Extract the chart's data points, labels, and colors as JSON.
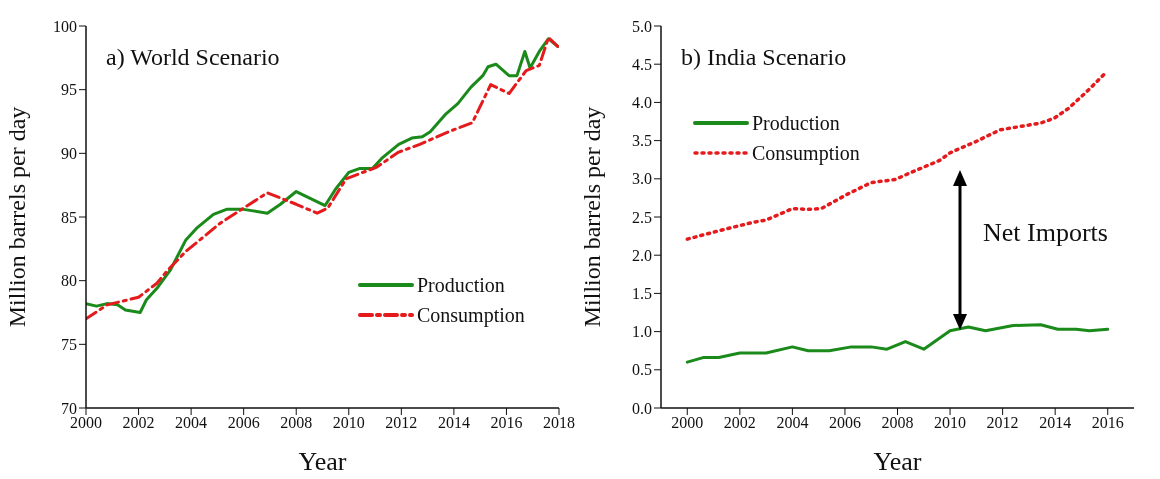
{
  "chart_data": [
    {
      "type": "line",
      "title": "a) World Scenario",
      "xlabel": "Year",
      "ylabel": "Million barrels per day",
      "xlim": [
        2000,
        2018
      ],
      "xticks": [
        2000,
        2002,
        2004,
        2006,
        2008,
        2010,
        2012,
        2014,
        2016,
        2018
      ],
      "ylim": [
        70,
        100
      ],
      "yticks": [
        70,
        75,
        80,
        85,
        90,
        95,
        100
      ],
      "grid": false,
      "legend": "bottom right",
      "series": [
        {
          "name": "Production",
          "color": "#1a8a1a",
          "line_style": "solid",
          "x": [
            2000,
            2000.4,
            2000.8,
            2001.2,
            2001.5,
            2002.06,
            2002.3,
            2002.7,
            2003.2,
            2003.8,
            2004.2,
            2004.85,
            2005.35,
            2006.0,
            2006.3,
            2006.9,
            2007.4,
            2008.0,
            2009.1,
            2009.5,
            2010.0,
            2010.4,
            2010.9,
            2011.25,
            2011.9,
            2012.4,
            2012.8,
            2013.1,
            2013.7,
            2014.15,
            2014.65,
            2015.1,
            2015.3,
            2015.6,
            2016.1,
            2016.4,
            2016.7,
            2016.9,
            2017.25,
            2017.6,
            2017.95
          ],
          "values": [
            78.2,
            78.0,
            78.2,
            78.1,
            77.7,
            77.5,
            78.5,
            79.4,
            80.8,
            83.2,
            84.1,
            85.2,
            85.6,
            85.6,
            85.5,
            85.3,
            86.0,
            87.0,
            85.9,
            87.2,
            88.5,
            88.8,
            88.8,
            89.6,
            90.7,
            91.2,
            91.3,
            91.7,
            93.1,
            93.9,
            95.2,
            96.1,
            96.8,
            97.0,
            96.1,
            96.1,
            98.0,
            96.7,
            98.0,
            99.0,
            98.4
          ]
        },
        {
          "name": "Consumption",
          "color": "#e41a1c",
          "line_style": "dashed",
          "x": [
            2000,
            2000.8,
            2002.0,
            2002.7,
            2003.1,
            2003.8,
            2005.1,
            2006.0,
            2006.9,
            2008.0,
            2008.8,
            2009.2,
            2009.9,
            2010.4,
            2011.05,
            2011.9,
            2012.7,
            2013.8,
            2014.7,
            2015.4,
            2016.1,
            2016.75,
            2017.25,
            2017.6,
            2017.95
          ],
          "values": [
            77.0,
            78.1,
            78.7,
            79.8,
            80.8,
            82.3,
            84.5,
            85.7,
            86.9,
            86.0,
            85.3,
            85.7,
            88.0,
            88.4,
            88.9,
            90.1,
            90.7,
            91.7,
            92.4,
            95.4,
            94.7,
            96.5,
            96.9,
            99.1,
            98.4
          ]
        }
      ]
    },
    {
      "type": "line",
      "title": "b) India Scenario",
      "xlabel": "Year",
      "ylabel": "Million barrels per day",
      "xlim": [
        1999,
        2017
      ],
      "xticks": [
        2000,
        2002,
        2004,
        2006,
        2008,
        2010,
        2012,
        2014,
        2016
      ],
      "ylim": [
        0,
        5
      ],
      "yticks": [
        {
          "value": 0,
          "label": "0.0"
        },
        {
          "value": 0.5,
          "label": "0.5"
        },
        {
          "value": 1,
          "label": "1.0"
        },
        {
          "value": 1.5,
          "label": "1.5"
        },
        {
          "value": 2,
          "label": "2.0"
        },
        {
          "value": 2.5,
          "label": "2.5"
        },
        {
          "value": 3,
          "label": "3.0"
        },
        {
          "value": 3.5,
          "label": "3.5"
        },
        {
          "value": 4,
          "label": "4.0"
        },
        {
          "value": 4.5,
          "label": "4.5"
        },
        {
          "value": 5,
          "label": "5.0"
        }
      ],
      "grid": false,
      "legend": "top left",
      "annotations": [
        "Net Imports"
      ],
      "series": [
        {
          "name": "Production",
          "color": "#1a8a1a",
          "line_style": "solid",
          "x": [
            2000,
            2000.6,
            2001.2,
            2002.0,
            2003.0,
            2004.0,
            2004.6,
            2005.4,
            2006.25,
            2007.0,
            2007.6,
            2008.3,
            2009.0,
            2010.0,
            2010.7,
            2011.35,
            2012.4,
            2013.45,
            2014.1,
            2014.8,
            2015.3,
            2016
          ],
          "values": [
            0.6,
            0.66,
            0.66,
            0.72,
            0.72,
            0.8,
            0.75,
            0.75,
            0.8,
            0.8,
            0.77,
            0.87,
            0.77,
            1.01,
            1.06,
            1.01,
            1.08,
            1.09,
            1.03,
            1.03,
            1.01,
            1.03
          ]
        },
        {
          "name": "Consumption",
          "color": "#e41a1c",
          "line_style": "dotted",
          "x": [
            2000,
            2001.2,
            2002.5,
            2003.0,
            2004.0,
            2004.6,
            2005.1,
            2006.1,
            2007.0,
            2007.9,
            2008.5,
            2009.6,
            2010.0,
            2011.0,
            2011.9,
            2013.45,
            2013.95,
            2014.5,
            2015.2,
            2015.9
          ],
          "values": [
            2.21,
            2.32,
            2.43,
            2.46,
            2.61,
            2.6,
            2.61,
            2.8,
            2.95,
            2.99,
            3.08,
            3.24,
            3.34,
            3.49,
            3.64,
            3.73,
            3.79,
            3.92,
            4.14,
            4.38
          ]
        }
      ]
    }
  ]
}
